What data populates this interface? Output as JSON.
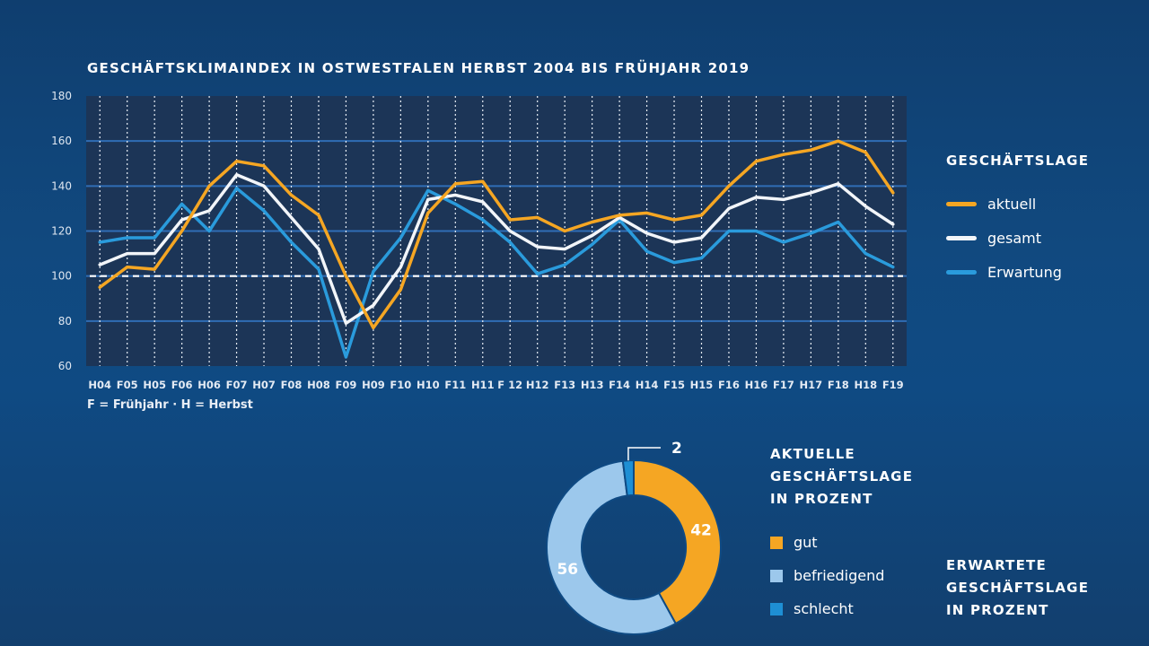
{
  "header": {
    "chart_title": "GESCHÄFTSKLIMAINDEX IN OSTWESTFALEN HERBST 2004 BIS FRÜHJAHR 2019",
    "footnote": "F = Frühjahr · H = Herbst"
  },
  "legend": {
    "title": "GESCHÄFTSLAGE",
    "items": [
      {
        "label": "aktuell",
        "color": "#f5a623"
      },
      {
        "label": "gesamt",
        "color": "#f2f5f9"
      },
      {
        "label": "Erwartung",
        "color": "#2a9bdc"
      }
    ]
  },
  "chart_data": [
    {
      "type": "line",
      "title": "GESCHÄFTSKLIMAINDEX IN OSTWESTFALEN HERBST 2004 BIS FRÜHJAHR 2019",
      "x": [
        "H04",
        "F05",
        "H05",
        "F06",
        "H06",
        "F07",
        "H07",
        "F08",
        "H08",
        "F09",
        "H09",
        "F10",
        "H10",
        "F11",
        "H11",
        "F 12",
        "H12",
        "F13",
        "H13",
        "F14",
        "H14",
        "F15",
        "H15",
        "F16",
        "H16",
        "F17",
        "H17",
        "F18",
        "H18",
        "F19"
      ],
      "ylim": [
        60,
        180
      ],
      "yticks": [
        60,
        80,
        100,
        120,
        140,
        160,
        180
      ],
      "reference_line": 100,
      "grid": true,
      "legend_position": "right",
      "series": [
        {
          "name": "aktuell",
          "color": "#f5a623",
          "values": [
            95,
            104,
            103,
            120,
            140,
            151,
            149,
            136,
            127,
            100,
            77,
            94,
            128,
            141,
            142,
            125,
            126,
            120,
            124,
            127,
            128,
            125,
            127,
            140,
            151,
            154,
            156,
            160,
            155,
            137
          ]
        },
        {
          "name": "gesamt",
          "color": "#f2f5f9",
          "values": [
            105,
            110,
            110,
            125,
            129,
            145,
            140,
            126,
            112,
            79,
            87,
            104,
            134,
            136,
            133,
            120,
            113,
            112,
            118,
            126,
            119,
            115,
            117,
            130,
            135,
            134,
            137,
            141,
            131,
            123
          ]
        },
        {
          "name": "Erwartung",
          "color": "#2a9bdc",
          "values": [
            115,
            117,
            117,
            132,
            120,
            139,
            129,
            115,
            103,
            64,
            102,
            117,
            138,
            132,
            125,
            115,
            101,
            105,
            114,
            125,
            111,
            106,
            108,
            120,
            120,
            115,
            119,
            124,
            110,
            104
          ]
        }
      ]
    },
    {
      "type": "pie",
      "title": "AKTUELLE GESCHÄFTSLAGE IN PROZENT",
      "categories": [
        "gut",
        "befriedigend",
        "schlecht"
      ],
      "values": [
        42,
        56,
        2
      ],
      "colors": [
        "#f5a623",
        "#9cc8ec",
        "#1e8fd4"
      ],
      "data_labels": [
        "42",
        "56",
        "2"
      ]
    }
  ],
  "pie_legend": {
    "title_lines": [
      "AKTUELLE",
      "GESCHÄFTSLAGE",
      "IN PROZENT"
    ],
    "items": [
      {
        "label": "gut",
        "color": "#f5a623"
      },
      {
        "label": "befriedigend",
        "color": "#9cc8ec"
      },
      {
        "label": "schlecht",
        "color": "#1e8fd4"
      }
    ]
  },
  "expectation_block": {
    "title_lines": [
      "ERWARTETE",
      "GESCHÄFTSLAGE",
      "IN PROZENT"
    ]
  }
}
